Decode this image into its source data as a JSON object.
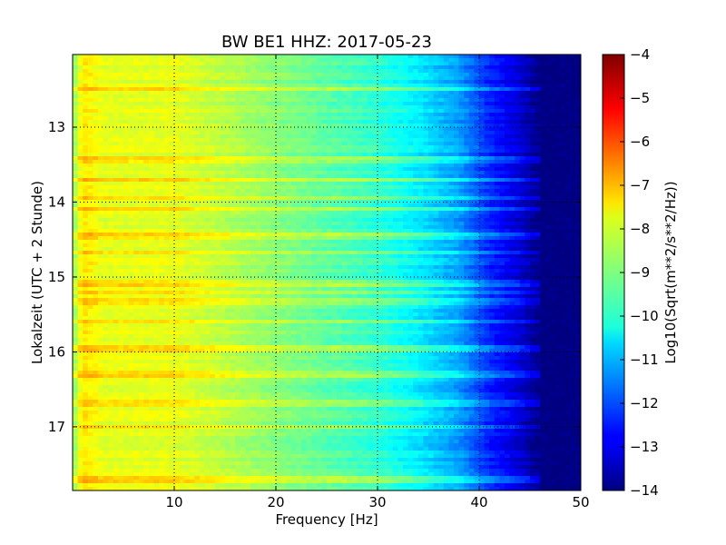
{
  "chart_data": {
    "type": "heatmap",
    "title": "BW BE1 HHZ: 2017-05-23",
    "xlabel": "Frequency [Hz]",
    "ylabel": "Lokalzeit (UTC + 2 Stunde)",
    "colorbar_label": "Log10(Sqrt(m**2/s**2/Hz))",
    "colormap": "jet",
    "xlim": [
      0,
      50
    ],
    "ylim": [
      12.03,
      17.85
    ],
    "y_inverted": true,
    "x_ticks": [
      10,
      20,
      30,
      40,
      50
    ],
    "y_ticks": [
      13,
      14,
      15,
      16,
      17
    ],
    "grid": "dotted",
    "colorbar_range": [
      -14,
      -4
    ],
    "colorbar_ticks": [
      -4,
      -5,
      -6,
      -7,
      -8,
      -9,
      -10,
      -11,
      -12,
      -13,
      -14
    ],
    "spectral_profile": [
      {
        "freq": 0,
        "value": -9.0
      },
      {
        "freq": 1,
        "value": -7.5
      },
      {
        "freq": 3,
        "value": -8.0
      },
      {
        "freq": 10,
        "value": -8.0
      },
      {
        "freq": 20,
        "value": -8.9
      },
      {
        "freq": 30,
        "value": -9.8
      },
      {
        "freq": 34,
        "value": -10.4
      },
      {
        "freq": 38,
        "value": -11.2
      },
      {
        "freq": 41,
        "value": -12.4
      },
      {
        "freq": 44,
        "value": -13.2
      },
      {
        "freq": 46,
        "value": -14.0
      },
      {
        "freq": 50,
        "value": -14.0
      }
    ],
    "energetic_hours": [
      12.5,
      13.45,
      13.7,
      13.95,
      14.1,
      14.45,
      14.68,
      15.1,
      15.2,
      15.3,
      15.35,
      15.6,
      15.97,
      16.3,
      16.7,
      17.0,
      17.7
    ]
  }
}
